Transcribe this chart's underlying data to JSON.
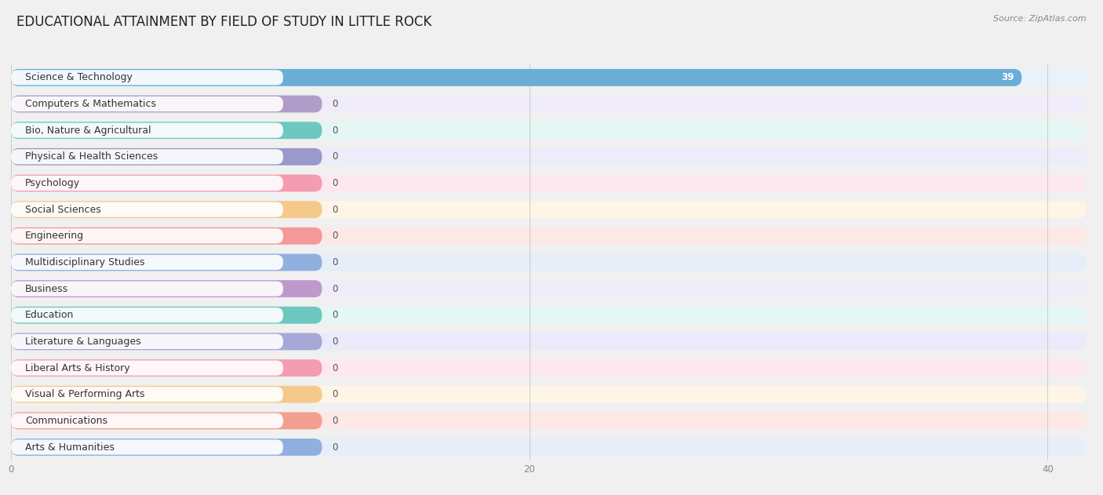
{
  "title": "EDUCATIONAL ATTAINMENT BY FIELD OF STUDY IN LITTLE ROCK",
  "source": "Source: ZipAtlas.com",
  "categories": [
    "Science & Technology",
    "Computers & Mathematics",
    "Bio, Nature & Agricultural",
    "Physical & Health Sciences",
    "Psychology",
    "Social Sciences",
    "Engineering",
    "Multidisciplinary Studies",
    "Business",
    "Education",
    "Literature & Languages",
    "Liberal Arts & History",
    "Visual & Performing Arts",
    "Communications",
    "Arts & Humanities"
  ],
  "values": [
    39,
    0,
    0,
    0,
    0,
    0,
    0,
    0,
    0,
    0,
    0,
    0,
    0,
    0,
    0
  ],
  "bar_colors": [
    "#6aaed6",
    "#b09cc8",
    "#6ec8bf",
    "#9999cc",
    "#f49db0",
    "#f5c98a",
    "#f49898",
    "#90b0e0",
    "#c099cc",
    "#6ec8bf",
    "#a8a8d8",
    "#f49db0",
    "#f5c98a",
    "#f4a090",
    "#90b0e0"
  ],
  "label_bg_colors": [
    "#daeaf8",
    "#ede8f8",
    "#d8f5f0",
    "#e8e8f8",
    "#fde0e8",
    "#fdf0dc",
    "#fde0dc",
    "#dce8f8",
    "#ede8f8",
    "#d8f5f0",
    "#e4e4f8",
    "#fde0e8",
    "#fdf0dc",
    "#fde4e0",
    "#dce8f8"
  ],
  "row_bg_colors": [
    "#e8f2fb",
    "#f0ecfa",
    "#e4f7f4",
    "#ececfa",
    "#fde8ef",
    "#fef5e6",
    "#fde8e6",
    "#e6eef9",
    "#f0ecfa",
    "#e4f7f4",
    "#eaeafa",
    "#fde8ef",
    "#fef5e6",
    "#fde8e6",
    "#e6eef9"
  ],
  "xlim": [
    0,
    41.5
  ],
  "xticks": [
    0,
    20,
    40
  ],
  "max_val": 40,
  "title_fontsize": 12,
  "label_fontsize": 9,
  "value_fontsize": 8.5,
  "source_fontsize": 8,
  "background_color": "#f0f0f0"
}
